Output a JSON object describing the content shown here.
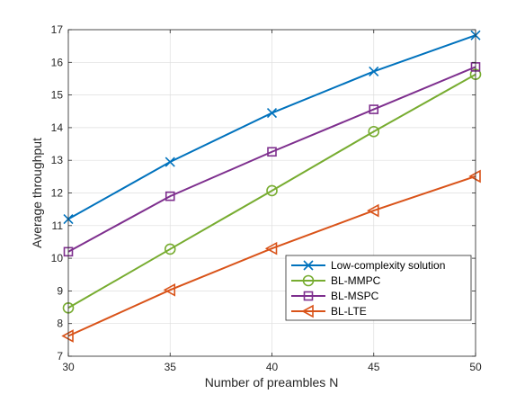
{
  "chart_data": {
    "type": "line",
    "title": "",
    "xlabel": "Number of preambles N",
    "ylabel": "Average throughput",
    "x": [
      30,
      35,
      40,
      45,
      50
    ],
    "xlim": [
      30,
      50
    ],
    "ylim": [
      7,
      17
    ],
    "xticks": [
      "30",
      "35",
      "40",
      "45",
      "50"
    ],
    "yticks": [
      "7",
      "8",
      "9",
      "10",
      "11",
      "12",
      "13",
      "14",
      "15",
      "16",
      "17"
    ],
    "grid": true,
    "legend_position": "bottom-right",
    "series": [
      {
        "name": "Low-complexity solution",
        "values": [
          11.2,
          12.95,
          14.45,
          15.72,
          16.83
        ],
        "color": "#0072BD",
        "marker": "x"
      },
      {
        "name": "BL-MMPC",
        "values": [
          8.48,
          10.28,
          12.07,
          13.88,
          15.63
        ],
        "color": "#77AC30",
        "marker": "circle"
      },
      {
        "name": "BL-MSPC",
        "values": [
          10.2,
          11.9,
          13.26,
          14.56,
          15.86
        ],
        "color": "#7E2F8E",
        "marker": "square"
      },
      {
        "name": "BL-LTE",
        "values": [
          7.62,
          9.03,
          10.3,
          11.46,
          12.51
        ],
        "color": "#D95319",
        "marker": "triangle-left"
      }
    ]
  }
}
